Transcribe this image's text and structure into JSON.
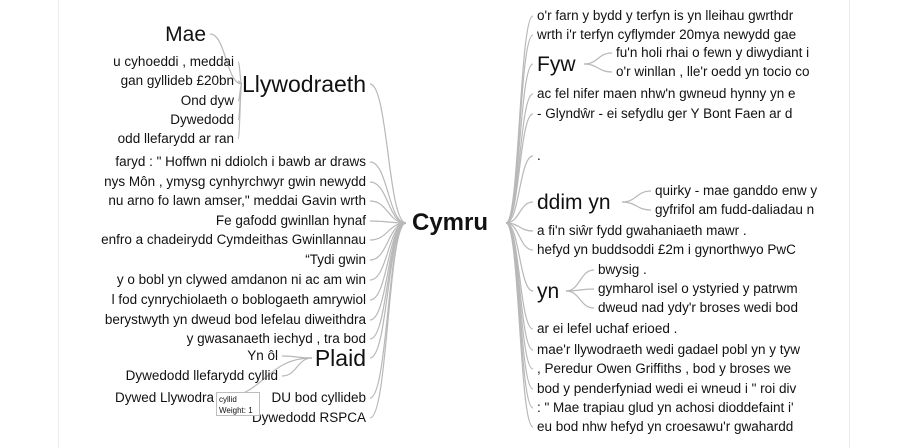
{
  "root": "Cymru",
  "left": [
    {
      "label": "Llywodraeth",
      "children": [
        {
          "label": "Mae",
          "children": []
        },
        {
          "label": "u cyhoeddi , meddai",
          "children": []
        },
        {
          "label": "gan gyllideb £20bn",
          "children": []
        },
        {
          "label": "Ond dyw",
          "children": []
        },
        {
          "label": "Dywedodd",
          "children": []
        },
        {
          "label": "odd llefarydd ar ran",
          "children": []
        }
      ]
    },
    {
      "label": "faryd : \" Hoffwn ni ddiolch i bawb ar draws",
      "children": []
    },
    {
      "label": "nys Môn , ymysg cynhyrchwyr gwin newydd",
      "children": []
    },
    {
      "label": "nu arno fo lawn amser,\" meddai Gavin wrth",
      "children": []
    },
    {
      "label": "Fe gafodd gwinllan hynaf",
      "children": []
    },
    {
      "label": "enfro a chadeirydd Cymdeithas Gwinllannau",
      "children": []
    },
    {
      "label": "“Tydi gwin",
      "children": []
    },
    {
      "label": "y o bobl yn clywed amdanon ni ac am win",
      "children": []
    },
    {
      "label": "l fod cynrychiolaeth o boblogaeth amrywiol",
      "children": []
    },
    {
      "label": "berystwyth yn dweud bod lefelau diweithdra",
      "children": []
    },
    {
      "label": "y gwasanaeth iechyd , tra bod",
      "children": []
    },
    {
      "label": "Plaid",
      "children": [
        {
          "label": "Yn ôl",
          "children": []
        },
        {
          "label": "Dywedodd llefarydd cyllid",
          "children": []
        },
        {
          "label": "Dywed Llywodra",
          "children": []
        }
      ]
    },
    {
      "label": "DU bod cyllideb",
      "children": []
    },
    {
      "label": "Dywedodd RSPCA",
      "children": []
    }
  ],
  "right": [
    {
      "label": "o'r farn y bydd y terfyn is yn lleihau gwrthdr",
      "children": []
    },
    {
      "label": "wrth i'r terfyn cyflymder 20mya newydd gae",
      "children": []
    },
    {
      "label": "Fyw",
      "children": [
        {
          "label": "fu'n holi rhai o fewn y diwydiant i",
          "children": []
        },
        {
          "label": "o'r winllan , lle'r oedd yn tocio co",
          "children": []
        }
      ]
    },
    {
      "label": "ac fel nifer maen nhw'n gwneud hynny yn e",
      "children": []
    },
    {
      "label": "- Glyndŵr - ei sefydlu ger Y Bont Faen ar d",
      "children": []
    },
    {
      "label": ".",
      "children": []
    },
    {
      "label": "ddim yn",
      "children": [
        {
          "label": "quirky - mae ganddo enw y",
          "children": []
        },
        {
          "label": "gyfrifol am fudd-daliadau n",
          "children": []
        }
      ]
    },
    {
      "label": "a fi'n siŵr fydd gwahaniaeth mawr .",
      "children": []
    },
    {
      "label": "hefyd yn buddsoddi £2m i gynorthwyo PwC",
      "children": []
    },
    {
      "label": "yn",
      "children": [
        {
          "label": "bwysig .",
          "children": []
        },
        {
          "label": "gymharol isel o ystyried y patrwm",
          "children": []
        },
        {
          "label": "dweud nad ydy'r broses wedi bod",
          "children": []
        }
      ]
    },
    {
      "label": "ar ei lefel uchaf erioed .",
      "children": []
    },
    {
      "label": "mae'r llywodraeth wedi gadael pobl yn y tyw",
      "children": []
    },
    {
      "label": ", Peredur Owen Griffiths , bod y broses we",
      "children": []
    },
    {
      "label": "bod y penderfyniad wedi ei wneud i \" roi div",
      "children": []
    },
    {
      "label": ": \" Mae trapiau glud yn achosi dioddefaint i'",
      "children": []
    },
    {
      "label": "eu bod nhw hefyd yn croesawu'r gwahardd",
      "children": []
    }
  ],
  "tooltip": {
    "word": "cyllid",
    "weight": "Weight: 1"
  }
}
